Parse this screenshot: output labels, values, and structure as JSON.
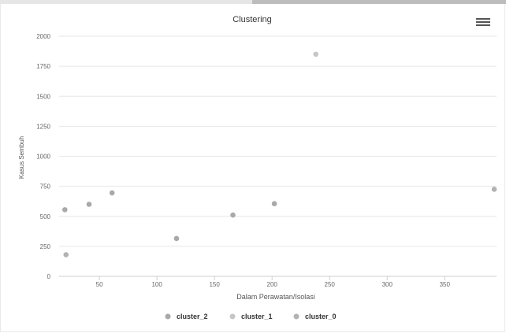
{
  "chart_data": {
    "type": "scatter",
    "title": "Clustering",
    "xlabel": "Dalam Perawatan/Isolasi",
    "ylabel": "Kasus Sembuh",
    "xlim": [
      15,
      395
    ],
    "ylim": [
      0,
      2000
    ],
    "x_ticks": [
      50,
      100,
      150,
      200,
      250,
      300,
      350
    ],
    "y_ticks": [
      0,
      250,
      500,
      750,
      1000,
      1250,
      1500,
      1750,
      2000
    ],
    "grid": "horizontal",
    "legend_position": "bottom-center",
    "series": [
      {
        "name": "cluster_2",
        "color": "#a9a9a9",
        "points": [
          [
            20,
            555
          ],
          [
            41,
            600
          ],
          [
            61,
            695
          ],
          [
            117,
            315
          ],
          [
            166,
            510
          ],
          [
            202,
            605
          ]
        ]
      },
      {
        "name": "cluster_1",
        "color": "#c6c6c6",
        "points": [
          [
            238,
            1850
          ]
        ]
      },
      {
        "name": "cluster_0",
        "color": "#b3b3b3",
        "points": [
          [
            21,
            180
          ],
          [
            393,
            725
          ]
        ]
      }
    ]
  },
  "menu_icon": "hamburger-icon"
}
